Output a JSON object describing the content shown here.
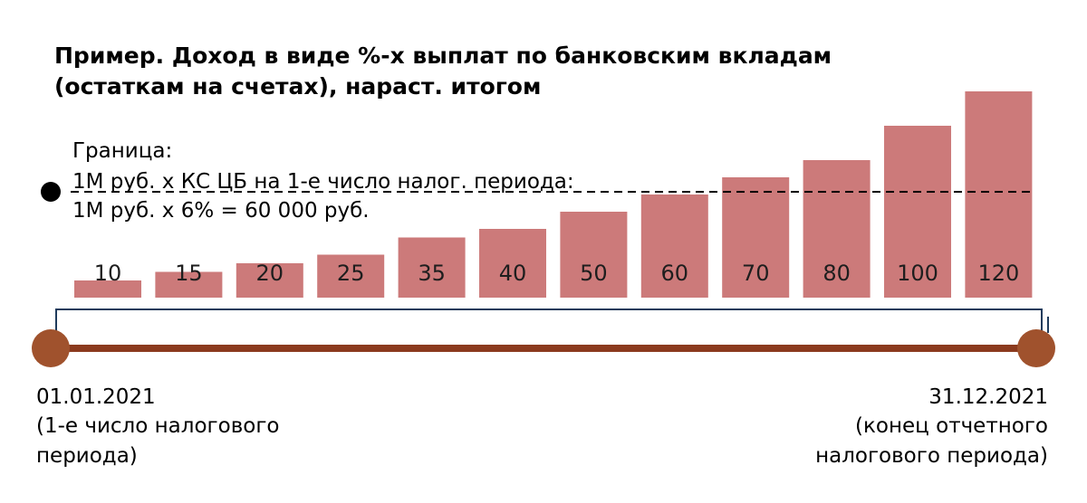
{
  "colors": {
    "bar": "#cc7a7a",
    "timeline": "#8b3a1e",
    "timeline_end": "#a0522d",
    "bracket": "#1f3b5c"
  },
  "chart_data": {
    "type": "bar",
    "title": "Пример. Доход в виде %-х выплат по банковским вкладам (остаткам на счетах), нараст. итогом",
    "title_lines": [
      "Пример. Доход в виде %-х выплат по банковским вкладам",
      "(остаткам на счетах), нараст. итогом"
    ],
    "categories": [
      "10",
      "15",
      "20",
      "25",
      "35",
      "40",
      "50",
      "60",
      "70",
      "80",
      "100",
      "120"
    ],
    "values": [
      10,
      15,
      20,
      25,
      35,
      40,
      50,
      60,
      70,
      80,
      100,
      120
    ],
    "threshold": {
      "value": 60,
      "lines": [
        "Граница:",
        "1М руб. х КС ЦБ на 1-е число налог. периода:",
        "1М руб. х 6% = 60 000 руб."
      ]
    },
    "start_label": [
      "01.01.2021",
      "(1-е число налогового",
      "периода)"
    ],
    "end_label": [
      "31.12.2021",
      "(конец отчетного",
      "налогового периода)"
    ]
  }
}
